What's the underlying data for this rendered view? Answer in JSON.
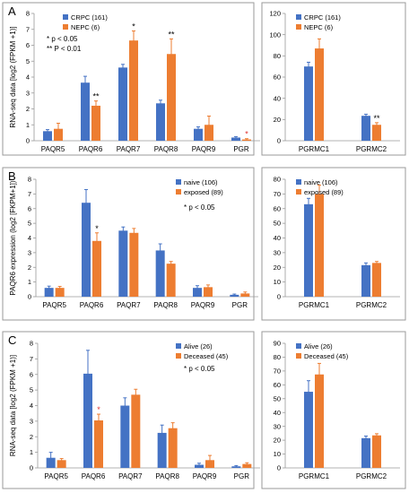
{
  "colors": {
    "blue": "#4472C4",
    "orange": "#ED7D31",
    "error_bar": "#4472C4",
    "error_bar_orange": "#ED7D31",
    "axis": "#9a9a9a",
    "grid": "none",
    "star_red": "#e03030",
    "frame": "#9a9a9a"
  },
  "chart_data": [
    {
      "panel": "A",
      "type": "bar",
      "ylabel": "RNA-seq data [log2 (FPKM +1)]",
      "ylim": [
        0,
        8
      ],
      "yticks": [
        0,
        1,
        2,
        3,
        4,
        5,
        6,
        7,
        8
      ],
      "categories": [
        "PAQR5",
        "PAQR6",
        "PAQR7",
        "PAQR8",
        "PAQR9",
        "PGR"
      ],
      "series": [
        {
          "name": "CRPC (161)",
          "values": [
            0.6,
            3.65,
            4.6,
            2.35,
            0.75,
            0.2
          ],
          "errors": [
            0.1,
            0.4,
            0.2,
            0.2,
            0.12,
            0.06
          ]
        },
        {
          "name": "NEPC (6)",
          "values": [
            0.75,
            2.2,
            6.3,
            5.45,
            1.0,
            0.08
          ],
          "errors": [
            0.35,
            0.3,
            0.6,
            0.95,
            0.55,
            0.05
          ]
        }
      ],
      "significance": [
        {
          "category": "PAQR6",
          "text": "**"
        },
        {
          "category": "PAQR7",
          "text": "*"
        },
        {
          "category": "PAQR8",
          "text": "**"
        },
        {
          "category": "PGR",
          "text": "*",
          "color": "red"
        }
      ],
      "annotations": [
        "* p < 0.05",
        "** P < 0.01"
      ],
      "legend": "top-left"
    },
    {
      "panel": "A-right",
      "type": "bar",
      "ylim": [
        0,
        120
      ],
      "yticks": [
        0,
        20,
        40,
        60,
        80,
        100,
        120
      ],
      "categories": [
        "PGRMC1",
        "PGRMC2"
      ],
      "series": [
        {
          "name": "CRPC (161)",
          "values": [
            70,
            23.5
          ],
          "errors": [
            4,
            1.5
          ]
        },
        {
          "name": "NEPC (6)",
          "values": [
            87,
            15
          ],
          "errors": [
            9,
            2
          ]
        }
      ],
      "significance": [
        {
          "category": "PGRMC2",
          "text": "**"
        }
      ],
      "legend": "top-left"
    },
    {
      "panel": "B",
      "type": "bar",
      "ylabel": "PAQR6 expression (log2 [FKPM+1])",
      "ylim": [
        0,
        8
      ],
      "yticks": [
        0,
        1,
        2,
        3,
        4,
        5,
        6,
        7,
        8
      ],
      "categories": [
        "PAQR5",
        "PAQR6",
        "PAQR7",
        "PAQR8",
        "PAQR9",
        "PGR"
      ],
      "series": [
        {
          "name": "naive (106)",
          "values": [
            0.6,
            6.4,
            4.5,
            3.15,
            0.6,
            0.13
          ],
          "errors": [
            0.12,
            0.9,
            0.25,
            0.45,
            0.15,
            0.05
          ]
        },
        {
          "name": "exposed (89)",
          "values": [
            0.6,
            3.8,
            4.35,
            2.25,
            0.65,
            0.22
          ],
          "errors": [
            0.1,
            0.55,
            0.3,
            0.15,
            0.15,
            0.1
          ]
        }
      ],
      "significance": [
        {
          "category": "PAQR6",
          "text": "*"
        }
      ],
      "annotations": [
        "* p < 0.05"
      ],
      "legend": "top-right"
    },
    {
      "panel": "B-right",
      "type": "bar",
      "ylim": [
        0,
        80
      ],
      "yticks": [
        0,
        10,
        20,
        30,
        40,
        50,
        60,
        70,
        80
      ],
      "categories": [
        "PGRMC1",
        "PGRMC2"
      ],
      "series": [
        {
          "name": "naive (106)",
          "values": [
            63,
            21.5
          ],
          "errors": [
            4,
            1.5
          ]
        },
        {
          "name": "exposed (89)",
          "values": [
            70,
            23
          ],
          "errors": [
            6,
            1
          ]
        }
      ],
      "legend": "top-left"
    },
    {
      "panel": "C",
      "type": "bar",
      "ylabel": "RNA-seq data [log2 (FPKM +1)]",
      "ylim": [
        0,
        8
      ],
      "yticks": [
        0,
        1,
        2,
        3,
        4,
        5,
        6,
        7,
        8
      ],
      "categories": [
        "PAQR5",
        "PAQR6",
        "PAQR7",
        "PAQR8",
        "PAQR9",
        "PGR"
      ],
      "series": [
        {
          "name": "Alive (26)",
          "values": [
            0.65,
            6.05,
            4.0,
            2.25,
            0.2,
            0.1
          ],
          "errors": [
            0.35,
            1.5,
            0.5,
            0.5,
            0.1,
            0.05
          ]
        },
        {
          "name": "Deceased (45)",
          "values": [
            0.5,
            3.05,
            4.7,
            2.55,
            0.5,
            0.25
          ],
          "errors": [
            0.1,
            0.4,
            0.35,
            0.35,
            0.3,
            0.08
          ]
        }
      ],
      "significance": [
        {
          "category": "PAQR6",
          "text": "*",
          "color": "red"
        }
      ],
      "annotations": [
        "* p < 0.05"
      ],
      "legend": "top-right"
    },
    {
      "panel": "C-right",
      "type": "bar",
      "ylim": [
        0,
        90
      ],
      "yticks": [
        0,
        10,
        20,
        30,
        40,
        50,
        60,
        70,
        80,
        90
      ],
      "categories": [
        "PGRMC1",
        "PGRMC2"
      ],
      "series": [
        {
          "name": "Alive (26)",
          "values": [
            55,
            21.5
          ],
          "errors": [
            8,
            1.5
          ]
        },
        {
          "name": "Deceased (45)",
          "values": [
            67.5,
            23.5
          ],
          "errors": [
            8,
            1.2
          ]
        }
      ],
      "legend": "top-left"
    }
  ]
}
